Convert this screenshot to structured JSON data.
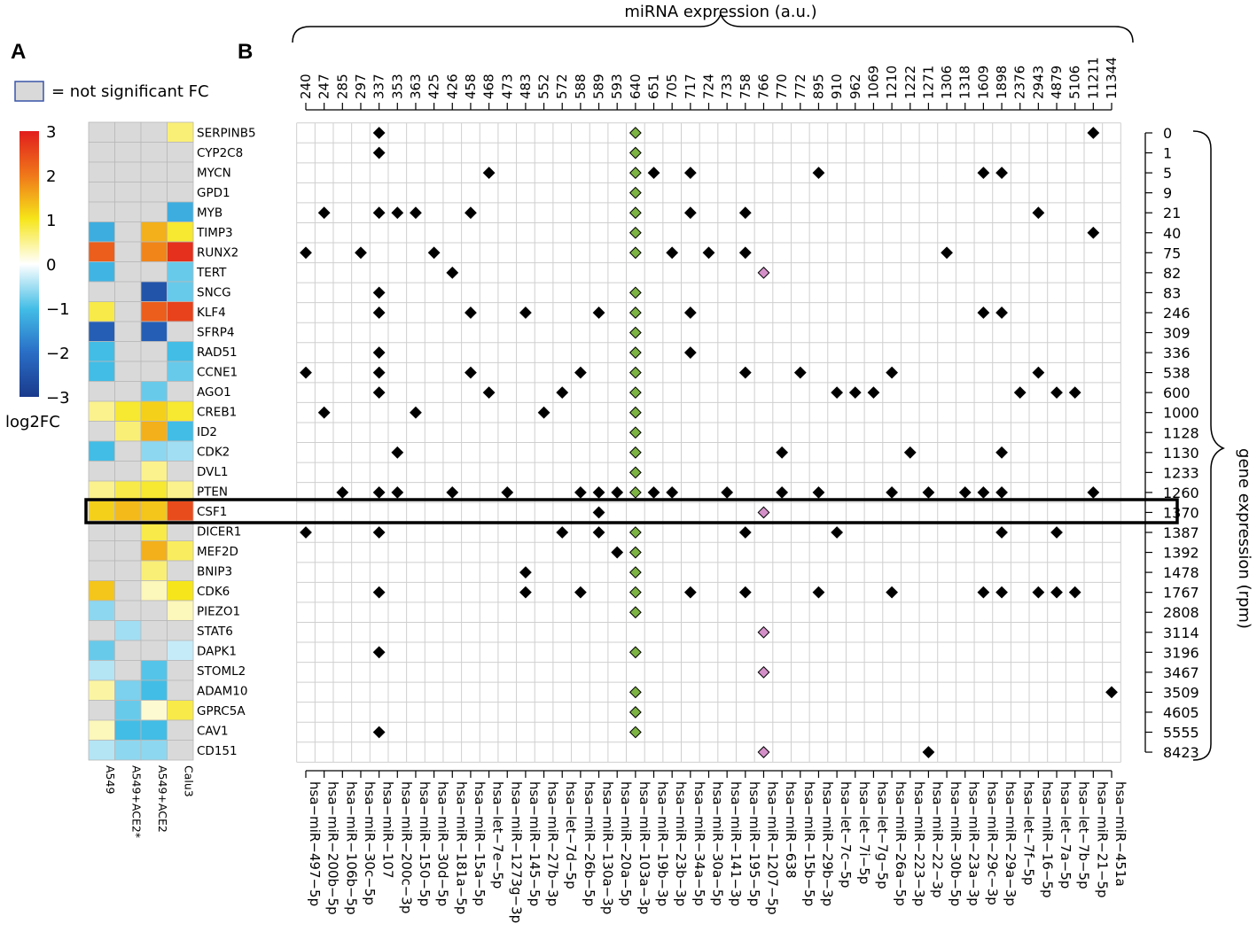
{
  "chart_data": [
    {
      "panel": "A",
      "type": "heatmap",
      "legend_note": "= not significant FC",
      "colorbar": {
        "title": "log2FC",
        "ticks": [
          "3",
          "2",
          "1",
          "0",
          "−1",
          "−2",
          "−3"
        ],
        "range": [
          -3,
          3
        ]
      },
      "columns": [
        "A549",
        "A549+ACE2*",
        "A549+ACE2",
        "Calu3"
      ],
      "rows": [
        "SERPINB5",
        "CYP2C8",
        "MYCN",
        "GPD1",
        "MYB",
        "TIMP3",
        "RUNX2",
        "TERT",
        "SNCG",
        "KLF4",
        "SFRP4",
        "RAD51",
        "CCNE1",
        "AGO1",
        "CREB1",
        "ID2",
        "CDK2",
        "DVL1",
        "PTEN",
        "CSF1",
        "DICER1",
        "MEF2D",
        "BNIP3",
        "CDK6",
        "PIEZO1",
        "STAT6",
        "DAPK1",
        "STOML2",
        "ADAM10",
        "GPRC5A",
        "CAV1",
        "CD151"
      ],
      "values": [
        [
          null,
          null,
          null,
          0.6
        ],
        [
          null,
          null,
          null,
          null
        ],
        [
          null,
          null,
          null,
          null
        ],
        [
          null,
          null,
          null,
          null
        ],
        [
          null,
          null,
          null,
          -1.2
        ],
        [
          -1.2,
          null,
          1.5,
          0.9
        ],
        [
          2.3,
          null,
          1.9,
          2.8
        ],
        [
          -1.1,
          null,
          null,
          -0.8
        ],
        [
          null,
          null,
          -2.5,
          -0.8
        ],
        [
          0.8,
          null,
          2.3,
          2.6
        ],
        [
          -2.3,
          null,
          -2.3,
          null
        ],
        [
          -1.0,
          null,
          null,
          -1.0
        ],
        [
          -1.0,
          null,
          null,
          -0.8
        ],
        [
          null,
          null,
          -0.8,
          null
        ],
        [
          0.5,
          0.9,
          1.2,
          0.9
        ],
        [
          null,
          0.6,
          1.5,
          -1.0
        ],
        [
          -1.0,
          null,
          -0.6,
          -0.5
        ],
        [
          null,
          null,
          0.5,
          null
        ],
        [
          0.5,
          0.8,
          0.9,
          0.5
        ],
        [
          1.2,
          1.4,
          1.3,
          2.5
        ],
        [
          null,
          null,
          0.8,
          null
        ],
        [
          null,
          null,
          1.5,
          0.7
        ],
        [
          null,
          null,
          0.6,
          null
        ],
        [
          1.3,
          null,
          0.3,
          1.0
        ],
        [
          -0.6,
          null,
          null,
          0.3
        ],
        [
          null,
          -0.5,
          null,
          null
        ],
        [
          -0.8,
          null,
          null,
          -0.3
        ],
        [
          -0.4,
          null,
          -0.9,
          null
        ],
        [
          0.4,
          -0.7,
          -1.0,
          null
        ],
        [
          null,
          -0.8,
          0.2,
          0.8
        ],
        [
          0.3,
          -1.0,
          -1.0,
          null
        ],
        [
          -0.4,
          -0.6,
          -0.6,
          null
        ]
      ]
    },
    {
      "panel": "B",
      "type": "scatter",
      "title": "miRNA expression (a.u.)",
      "ylabel": "gene expression (rpm)",
      "highlight_row": "CSF1",
      "colors": {
        "black": "#000000",
        "green": "#7cb342",
        "pink": "#d48fc8"
      },
      "mirnas": [
        "hsa−miR−497−5p",
        "hsa−miR−200b−5p",
        "hsa−miR−106b−5p",
        "hsa−miR−30c−5p",
        "hsa−miR−107",
        "hsa−miR−200c−3p",
        "hsa−miR−150−5p",
        "hsa−miR−30d−5p",
        "hsa−miR−181a−5p",
        "hsa−miR−15a−5p",
        "hsa−let−7e−5p",
        "hsa−miR−1273g−3p",
        "hsa−miR−145−5p",
        "hsa−miR−27b−3p",
        "hsa−let−7d−5p",
        "hsa−miR−26b−5p",
        "hsa−miR−130a−3p",
        "hsa−miR−20a−5p",
        "hsa−miR−103a−3p",
        "hsa−miR−19b−3p",
        "hsa−miR−23b−3p",
        "hsa−miR−34a−5p",
        "hsa−miR−30a−5p",
        "hsa−miR−141−3p",
        "hsa−miR−195−5p",
        "hsa−miR−1207−5p",
        "hsa−miR−638",
        "hsa−miR−15b−5p",
        "hsa−miR−29b−3p",
        "hsa−let−7c−5p",
        "hsa−let−7i−5p",
        "hsa−let−7g−5p",
        "hsa−miR−26a−5p",
        "hsa−miR−223−3p",
        "hsa−miR−22−3p",
        "hsa−miR−30b−5p",
        "hsa−miR−23a−3p",
        "hsa−miR−29c−3p",
        "hsa−miR−29a−3p",
        "hsa−let−7f−5p",
        "hsa−miR−16−5p",
        "hsa−let−7a−5p",
        "hsa−let−7b−5p",
        "hsa−miR−21−5p",
        "hsa−miR−451a"
      ],
      "mirna_expression": [
        "240",
        "247",
        "285",
        "297",
        "337",
        "353",
        "363",
        "425",
        "426",
        "458",
        "468",
        "473",
        "483",
        "552",
        "572",
        "588",
        "589",
        "593",
        "640",
        "651",
        "705",
        "717",
        "724",
        "733",
        "758",
        "766",
        "770",
        "772",
        "895",
        "910",
        "962",
        "1069",
        "1210",
        "1222",
        "1271",
        "1306",
        "1318",
        "1609",
        "1898",
        "2376",
        "2943",
        "4879",
        "5106",
        "11211",
        "11344"
      ],
      "genes": [
        "SERPINB5",
        "CYP2C8",
        "MYCN",
        "GPD1",
        "MYB",
        "TIMP3",
        "RUNX2",
        "TERT",
        "SNCG",
        "KLF4",
        "SFRP4",
        "RAD51",
        "CCNE1",
        "AGO1",
        "CREB1",
        "ID2",
        "CDK2",
        "DVL1",
        "PTEN",
        "CSF1",
        "DICER1",
        "MEF2D",
        "BNIP3",
        "CDK6",
        "PIEZO1",
        "STAT6",
        "DAPK1",
        "STOML2",
        "ADAM10",
        "GPRC5A",
        "CAV1",
        "CD151"
      ],
      "gene_expression": [
        "0",
        "1",
        "5",
        "9",
        "21",
        "40",
        "75",
        "82",
        "83",
        "246",
        "309",
        "336",
        "538",
        "600",
        "1000",
        "1128",
        "1130",
        "1233",
        "1260",
        "1370",
        "1387",
        "1392",
        "1478",
        "1767",
        "2808",
        "3114",
        "3196",
        "3467",
        "3509",
        "4605",
        "5555",
        "8423"
      ],
      "points": [
        [
          "SERPINB5",
          "hsa−miR−107",
          "black"
        ],
        [
          "SERPINB5",
          "hsa−miR−103a−3p",
          "green"
        ],
        [
          "SERPINB5",
          "hsa−miR−21−5p",
          "black"
        ],
        [
          "CYP2C8",
          "hsa−miR−107",
          "black"
        ],
        [
          "CYP2C8",
          "hsa−miR−103a−3p",
          "green"
        ],
        [
          "MYCN",
          "hsa−let−7e−5p",
          "black"
        ],
        [
          "MYCN",
          "hsa−miR−103a−3p",
          "green"
        ],
        [
          "MYCN",
          "hsa−miR−19b−3p",
          "black"
        ],
        [
          "MYCN",
          "hsa−miR−34a−5p",
          "black"
        ],
        [
          "MYCN",
          "hsa−miR−29b−3p",
          "black"
        ],
        [
          "MYCN",
          "hsa−miR−29c−3p",
          "black"
        ],
        [
          "MYCN",
          "hsa−miR−29a−3p",
          "black"
        ],
        [
          "GPD1",
          "hsa−miR−103a−3p",
          "green"
        ],
        [
          "MYB",
          "hsa−miR−200b−5p",
          "black"
        ],
        [
          "MYB",
          "hsa−miR−107",
          "black"
        ],
        [
          "MYB",
          "hsa−miR−200c−3p",
          "black"
        ],
        [
          "MYB",
          "hsa−miR−150−5p",
          "black"
        ],
        [
          "MYB",
          "hsa−miR−15a−5p",
          "black"
        ],
        [
          "MYB",
          "hsa−miR−103a−3p",
          "green"
        ],
        [
          "MYB",
          "hsa−miR−34a−5p",
          "black"
        ],
        [
          "MYB",
          "hsa−miR−195−5p",
          "black"
        ],
        [
          "MYB",
          "hsa−miR−16−5p",
          "black"
        ],
        [
          "TIMP3",
          "hsa−miR−103a−3p",
          "green"
        ],
        [
          "TIMP3",
          "hsa−miR−21−5p",
          "black"
        ],
        [
          "RUNX2",
          "hsa−miR−497−5p",
          "black"
        ],
        [
          "RUNX2",
          "hsa−miR−30c−5p",
          "black"
        ],
        [
          "RUNX2",
          "hsa−miR−30d−5p",
          "black"
        ],
        [
          "RUNX2",
          "hsa−miR−103a−3p",
          "green"
        ],
        [
          "RUNX2",
          "hsa−miR−23b−3p",
          "black"
        ],
        [
          "RUNX2",
          "hsa−miR−30a−5p",
          "black"
        ],
        [
          "RUNX2",
          "hsa−miR−195−5p",
          "black"
        ],
        [
          "RUNX2",
          "hsa−miR−30b−5p",
          "black"
        ],
        [
          "TERT",
          "hsa−miR−181a−5p",
          "black"
        ],
        [
          "TERT",
          "hsa−miR−1207−5p",
          "pink"
        ],
        [
          "SNCG",
          "hsa−miR−107",
          "black"
        ],
        [
          "SNCG",
          "hsa−miR−103a−3p",
          "green"
        ],
        [
          "KLF4",
          "hsa−miR−107",
          "black"
        ],
        [
          "KLF4",
          "hsa−miR−15a−5p",
          "black"
        ],
        [
          "KLF4",
          "hsa−miR−145−5p",
          "black"
        ],
        [
          "KLF4",
          "hsa−miR−130a−3p",
          "black"
        ],
        [
          "KLF4",
          "hsa−miR−103a−3p",
          "green"
        ],
        [
          "KLF4",
          "hsa−miR−34a−5p",
          "black"
        ],
        [
          "KLF4",
          "hsa−miR−29c−3p",
          "black"
        ],
        [
          "KLF4",
          "hsa−miR−29a−3p",
          "black"
        ],
        [
          "SFRP4",
          "hsa−miR−103a−3p",
          "green"
        ],
        [
          "RAD51",
          "hsa−miR−107",
          "black"
        ],
        [
          "RAD51",
          "hsa−miR−103a−3p",
          "green"
        ],
        [
          "RAD51",
          "hsa−miR−34a−5p",
          "black"
        ],
        [
          "CCNE1",
          "hsa−miR−497−5p",
          "black"
        ],
        [
          "CCNE1",
          "hsa−miR−107",
          "black"
        ],
        [
          "CCNE1",
          "hsa−miR−15a−5p",
          "black"
        ],
        [
          "CCNE1",
          "hsa−miR−26b−5p",
          "black"
        ],
        [
          "CCNE1",
          "hsa−miR−103a−3p",
          "green"
        ],
        [
          "CCNE1",
          "hsa−miR−195−5p",
          "black"
        ],
        [
          "CCNE1",
          "hsa−miR−15b−5p",
          "black"
        ],
        [
          "CCNE1",
          "hsa−miR−26a−5p",
          "black"
        ],
        [
          "CCNE1",
          "hsa−miR−16−5p",
          "black"
        ],
        [
          "AGO1",
          "hsa−miR−107",
          "black"
        ],
        [
          "AGO1",
          "hsa−let−7e−5p",
          "black"
        ],
        [
          "AGO1",
          "hsa−let−7d−5p",
          "black"
        ],
        [
          "AGO1",
          "hsa−miR−103a−3p",
          "green"
        ],
        [
          "AGO1",
          "hsa−let−7c−5p",
          "black"
        ],
        [
          "AGO1",
          "hsa−let−7i−5p",
          "black"
        ],
        [
          "AGO1",
          "hsa−let−7g−5p",
          "black"
        ],
        [
          "AGO1",
          "hsa−let−7f−5p",
          "black"
        ],
        [
          "AGO1",
          "hsa−let−7a−5p",
          "black"
        ],
        [
          "AGO1",
          "hsa−let−7b−5p",
          "black"
        ],
        [
          "CREB1",
          "hsa−miR−200b−5p",
          "black"
        ],
        [
          "CREB1",
          "hsa−miR−150−5p",
          "black"
        ],
        [
          "CREB1",
          "hsa−miR−27b−3p",
          "black"
        ],
        [
          "CREB1",
          "hsa−miR−103a−3p",
          "green"
        ],
        [
          "ID2",
          "hsa−miR−103a−3p",
          "green"
        ],
        [
          "CDK2",
          "hsa−miR−200c−3p",
          "black"
        ],
        [
          "CDK2",
          "hsa−miR−103a−3p",
          "green"
        ],
        [
          "CDK2",
          "hsa−miR−638",
          "black"
        ],
        [
          "CDK2",
          "hsa−miR−223−3p",
          "black"
        ],
        [
          "CDK2",
          "hsa−miR−29a−3p",
          "black"
        ],
        [
          "DVL1",
          "hsa−miR−103a−3p",
          "green"
        ],
        [
          "PTEN",
          "hsa−miR−106b−5p",
          "black"
        ],
        [
          "PTEN",
          "hsa−miR−107",
          "black"
        ],
        [
          "PTEN",
          "hsa−miR−200c−3p",
          "black"
        ],
        [
          "PTEN",
          "hsa−miR−181a−5p",
          "black"
        ],
        [
          "PTEN",
          "hsa−miR−1273g−3p",
          "black"
        ],
        [
          "PTEN",
          "hsa−miR−26b−5p",
          "black"
        ],
        [
          "PTEN",
          "hsa−miR−130a−3p",
          "black"
        ],
        [
          "PTEN",
          "hsa−miR−20a−5p",
          "black"
        ],
        [
          "PTEN",
          "hsa−miR−103a−3p",
          "green"
        ],
        [
          "PTEN",
          "hsa−miR−19b−3p",
          "black"
        ],
        [
          "PTEN",
          "hsa−miR−23b−3p",
          "black"
        ],
        [
          "PTEN",
          "hsa−miR−141−3p",
          "black"
        ],
        [
          "PTEN",
          "hsa−miR−638",
          "black"
        ],
        [
          "PTEN",
          "hsa−miR−29b−3p",
          "black"
        ],
        [
          "PTEN",
          "hsa−miR−26a−5p",
          "black"
        ],
        [
          "PTEN",
          "hsa−miR−22−3p",
          "black"
        ],
        [
          "PTEN",
          "hsa−miR−23a−3p",
          "black"
        ],
        [
          "PTEN",
          "hsa−miR−29c−3p",
          "black"
        ],
        [
          "PTEN",
          "hsa−miR−29a−3p",
          "black"
        ],
        [
          "PTEN",
          "hsa−miR−21−5p",
          "black"
        ],
        [
          "CSF1",
          "hsa−miR−130a−3p",
          "black"
        ],
        [
          "CSF1",
          "hsa−miR−1207−5p",
          "pink"
        ],
        [
          "DICER1",
          "hsa−miR−497−5p",
          "black"
        ],
        [
          "DICER1",
          "hsa−miR−107",
          "black"
        ],
        [
          "DICER1",
          "hsa−let−7d−5p",
          "black"
        ],
        [
          "DICER1",
          "hsa−miR−130a−3p",
          "black"
        ],
        [
          "DICER1",
          "hsa−miR−103a−3p",
          "green"
        ],
        [
          "DICER1",
          "hsa−miR−195−5p",
          "black"
        ],
        [
          "DICER1",
          "hsa−let−7c−5p",
          "black"
        ],
        [
          "DICER1",
          "hsa−miR−29a−3p",
          "black"
        ],
        [
          "DICER1",
          "hsa−let−7a−5p",
          "black"
        ],
        [
          "MEF2D",
          "hsa−miR−20a−5p",
          "black"
        ],
        [
          "MEF2D",
          "hsa−miR−103a−3p",
          "green"
        ],
        [
          "BNIP3",
          "hsa−miR−145−5p",
          "black"
        ],
        [
          "BNIP3",
          "hsa−miR−103a−3p",
          "green"
        ],
        [
          "CDK6",
          "hsa−miR−107",
          "black"
        ],
        [
          "CDK6",
          "hsa−miR−145−5p",
          "black"
        ],
        [
          "CDK6",
          "hsa−miR−26b−5p",
          "black"
        ],
        [
          "CDK6",
          "hsa−miR−103a−3p",
          "green"
        ],
        [
          "CDK6",
          "hsa−miR−34a−5p",
          "black"
        ],
        [
          "CDK6",
          "hsa−miR−195−5p",
          "black"
        ],
        [
          "CDK6",
          "hsa−miR−29b−3p",
          "black"
        ],
        [
          "CDK6",
          "hsa−miR−26a−5p",
          "black"
        ],
        [
          "CDK6",
          "hsa−miR−29c−3p",
          "black"
        ],
        [
          "CDK6",
          "hsa−miR−29a−3p",
          "black"
        ],
        [
          "CDK6",
          "hsa−miR−16−5p",
          "black"
        ],
        [
          "CDK6",
          "hsa−let−7a−5p",
          "black"
        ],
        [
          "CDK6",
          "hsa−let−7b−5p",
          "black"
        ],
        [
          "PIEZO1",
          "hsa−miR−103a−3p",
          "green"
        ],
        [
          "STAT6",
          "hsa−miR−1207−5p",
          "pink"
        ],
        [
          "DAPK1",
          "hsa−miR−107",
          "black"
        ],
        [
          "DAPK1",
          "hsa−miR−103a−3p",
          "green"
        ],
        [
          "STOML2",
          "hsa−miR−1207−5p",
          "pink"
        ],
        [
          "ADAM10",
          "hsa−miR−103a−3p",
          "green"
        ],
        [
          "ADAM10",
          "hsa−miR−451a",
          "black"
        ],
        [
          "GPRC5A",
          "hsa−miR−103a−3p",
          "green"
        ],
        [
          "CAV1",
          "hsa−miR−107",
          "black"
        ],
        [
          "CAV1",
          "hsa−miR−103a−3p",
          "green"
        ],
        [
          "CD151",
          "hsa−miR−1207−5p",
          "pink"
        ],
        [
          "CD151",
          "hsa−miR−22−3p",
          "black"
        ]
      ]
    }
  ]
}
